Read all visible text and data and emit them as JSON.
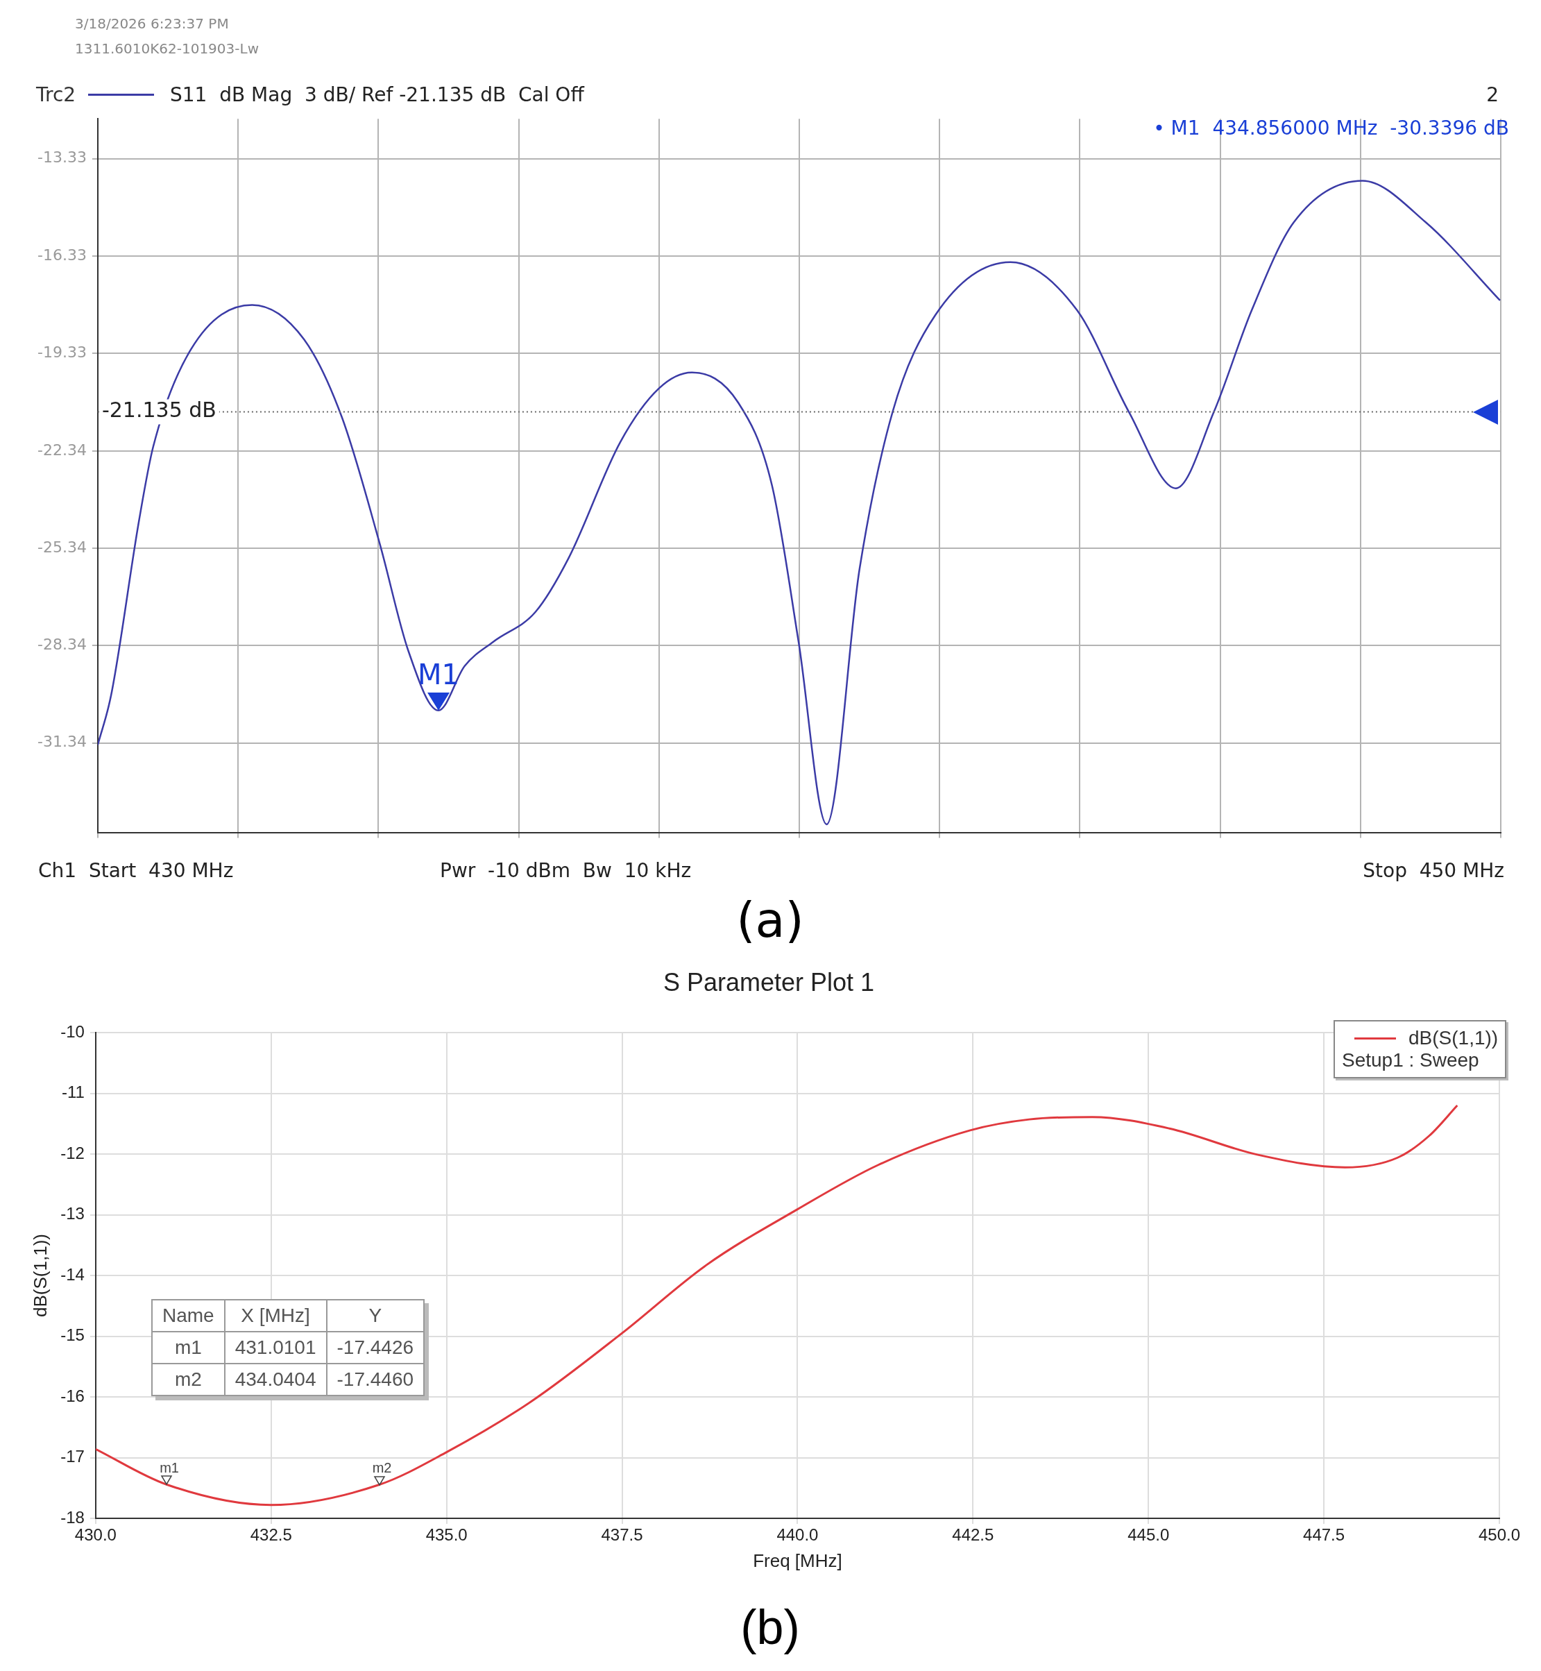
{
  "chart_data": [
    {
      "type": "line",
      "subtitle": "S11  dB Mag  3 dB/ Ref -21.135 dB  Cal Off",
      "annotations": [
        "3/18/2026 6:23:37 PM",
        "1311.6010K62-101903-Lw",
        "2",
        "• M1  434.856000 MHz  -30.3396 dB",
        "Ch1  Start  430 MHz",
        "Pwr  -10 dBm  Bw  10 kHz",
        "Stop  450 MHz",
        "(a)",
        {
          "text": "M1",
          "x": 434.856,
          "y": -30.3396
        }
      ],
      "series": [
        {
          "name": "Trc2",
          "color": "#3b3ba6",
          "x": [
            430,
            430.19,
            430.59,
            430.79,
            431.33,
            432.2,
            432.94,
            433.48,
            434.02,
            434.43,
            434.856,
            435.23,
            435.64,
            436.24,
            436.71,
            437.45,
            438.0,
            438.47,
            439.13,
            439.61,
            439.99,
            440.39,
            440.86,
            441.33,
            441.94,
            443.01,
            443.96,
            444.7,
            445.37,
            445.91,
            446.45,
            447.05,
            448.03,
            448.93,
            449.99
          ],
          "values": [
            -31.4,
            -29.87,
            -24.46,
            -22.21,
            -19.2,
            -17.84,
            -18.9,
            -21.3,
            -25.2,
            -28.52,
            -30.3396,
            -28.97,
            -28.22,
            -27.3,
            -25.65,
            -22.06,
            -20.41,
            -19.92,
            -20.85,
            -23.39,
            -28.22,
            -33.85,
            -25.97,
            -21.14,
            -18.15,
            -16.52,
            -18.0,
            -21.14,
            -23.49,
            -21.14,
            -18.0,
            -15.29,
            -14.01,
            -15.29,
            -17.7
          ]
        }
      ],
      "xlim": [
        430,
        450
      ],
      "xticks": [
        {
          "value": 430,
          "label": null
        },
        {
          "value": 432,
          "label": null
        },
        {
          "value": 434,
          "label": null
        },
        {
          "value": 436,
          "label": null
        },
        {
          "value": 438,
          "label": null
        },
        {
          "value": 440,
          "label": null
        },
        {
          "value": 442,
          "label": null
        },
        {
          "value": 444,
          "label": null
        },
        {
          "value": 446,
          "label": null
        },
        {
          "value": 448,
          "label": null
        },
        {
          "value": 450,
          "label": null
        }
      ],
      "ylim": [
        -34.1,
        -12.1
      ],
      "yticks": [
        -13.33,
        -16.33,
        -19.33,
        -22.34,
        -25.34,
        -28.34,
        -31.34
      ],
      "tick_labels": "y",
      "grid": true,
      "legend": "top left",
      "marker": "none",
      "line_style": "solid",
      "ref_lines": [
        {
          "axis": "y",
          "value": -21.135,
          "label": "-21.135 dB",
          "color": "#666666",
          "line_style": "dotted"
        }
      ]
    },
    {
      "type": "line",
      "title": "S Parameter Plot 1",
      "xlabel": "Freq [MHz]",
      "ylabel": "dB(S(1,1))",
      "legend_title": "Setup1 : Sweep",
      "annotations": [
        "Name",
        "X [MHz]",
        "Y",
        "m1",
        "431.0101",
        "-17.4426",
        "m2",
        "434.0404",
        "-17.4460",
        "(b)",
        {
          "text": "m1",
          "x": 431.0101,
          "y": -17.4426
        },
        {
          "text": "m2",
          "x": 434.0404,
          "y": -17.446
        }
      ],
      "series": [
        {
          "name": "dB(S(1,1))",
          "color": "#e0393e",
          "x": [
            430,
            431.0101,
            432.5,
            434.0404,
            435,
            436.2,
            437.5,
            438.7,
            440,
            441.15,
            442.46,
            443.3,
            444.2,
            445.3,
            446.55,
            447.8,
            448.55,
            449.0,
            449.4
          ],
          "values": [
            -16.86,
            -17.4426,
            -17.78,
            -17.446,
            -16.91,
            -16.08,
            -14.95,
            -13.83,
            -12.91,
            -12.18,
            -11.61,
            -11.43,
            -11.39,
            -11.58,
            -12.01,
            -12.22,
            -12.06,
            -11.7,
            -11.2
          ]
        }
      ],
      "xlim": [
        430,
        450
      ],
      "xticks": [
        {
          "value": 430,
          "label": "430.0"
        },
        {
          "value": 432.5,
          "label": "432.5"
        },
        {
          "value": 435,
          "label": "435.0"
        },
        {
          "value": 437.5,
          "label": "437.5"
        },
        {
          "value": 440,
          "label": "440.0"
        },
        {
          "value": 442.5,
          "label": "442.5"
        },
        {
          "value": 445,
          "label": "445.0"
        },
        {
          "value": 447.5,
          "label": "447.5"
        },
        {
          "value": 450,
          "label": "450.0"
        }
      ],
      "ylim": [
        -18,
        -10
      ],
      "yticks": [
        -10,
        -11,
        -12,
        -13,
        -14,
        -15,
        -16,
        -17,
        -18
      ],
      "grid": true,
      "legend": "top right",
      "marker": "none",
      "line_style": "solid"
    }
  ]
}
